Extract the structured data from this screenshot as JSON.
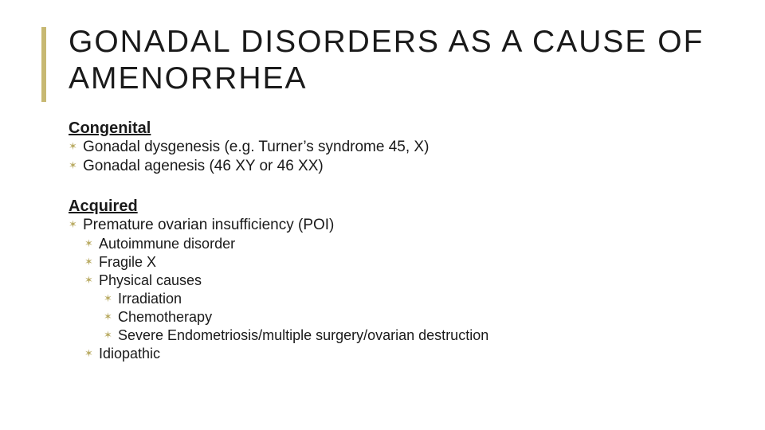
{
  "accent_color": "#c7b872",
  "bullet_color": "#b9ab63",
  "text_color": "#1a1a1a",
  "background_color": "#ffffff",
  "title": "GONADAL DISORDERS AS A CAUSE OF AMENORRHEA",
  "sections": {
    "congenital": {
      "heading": "Congenital",
      "items": [
        "Gonadal dysgenesis (e.g. Turner’s syndrome 45, X)",
        "Gonadal agenesis (46 XY or 46 XX)"
      ]
    },
    "acquired": {
      "heading": "Acquired",
      "poi": "Premature ovarian insufficiency (POI)",
      "sub": {
        "autoimmune": "Autoimmune disorder",
        "fragile": "Fragile X",
        "physical": "Physical causes",
        "physical_sub": [
          "Irradiation",
          "Chemotherapy",
          "Severe Endometriosis/multiple surgery/ovarian destruction"
        ],
        "idiopathic": "Idiopathic"
      }
    }
  }
}
